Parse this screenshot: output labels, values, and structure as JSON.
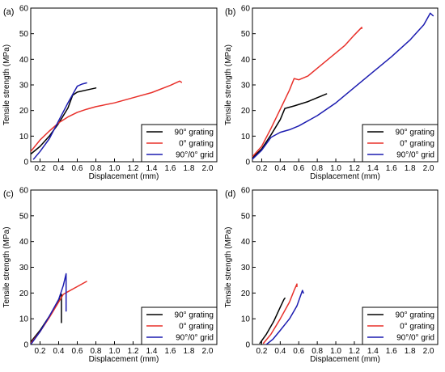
{
  "chart_data": [
    {
      "type": "line",
      "panel_label": "(a)",
      "xlabel": "Displacement (mm)",
      "ylabel": "Tensile strength (MPa)",
      "xlim": [
        0.1,
        2.1
      ],
      "ylim": [
        0,
        60
      ],
      "xticks": [
        "0.2",
        "0.4",
        "0.6",
        "0.8",
        "1.0",
        "1.2",
        "1.4",
        "1.6",
        "1.8",
        "2.0"
      ],
      "yticks": [
        "0",
        "10",
        "20",
        "30",
        "40",
        "50",
        "60"
      ],
      "legend_position": "bottom-right",
      "series": [
        {
          "name": "90° grating",
          "color": "#000000",
          "segments": [
            [
              [
                0.1,
                3
              ],
              [
                0.2,
                6
              ],
              [
                0.3,
                10
              ],
              [
                0.4,
                15
              ],
              [
                0.5,
                21
              ],
              [
                0.55,
                26
              ],
              [
                0.6,
                27.2
              ],
              [
                0.7,
                28
              ],
              [
                0.8,
                28.8
              ]
            ]
          ]
        },
        {
          "name": "0° grating",
          "color": "#e8302a",
          "segments": [
            [
              [
                0.1,
                4
              ],
              [
                0.2,
                8.5
              ],
              [
                0.3,
                12
              ],
              [
                0.4,
                15.2
              ],
              [
                0.5,
                17.5
              ],
              [
                0.6,
                19.3
              ],
              [
                0.7,
                20.5
              ],
              [
                0.8,
                21.5
              ],
              [
                1.0,
                23
              ],
              [
                1.2,
                25
              ],
              [
                1.4,
                27
              ],
              [
                1.6,
                29.8
              ],
              [
                1.7,
                31.5
              ],
              [
                1.72,
                31
              ]
            ]
          ]
        },
        {
          "name": "90°/0° grid",
          "color": "#1c1cb0",
          "segments": [
            [
              [
                0.13,
                1
              ],
              [
                0.2,
                4
              ],
              [
                0.3,
                9
              ],
              [
                0.4,
                16
              ],
              [
                0.5,
                23
              ],
              [
                0.6,
                29.5
              ],
              [
                0.65,
                30.3
              ],
              [
                0.7,
                30.8
              ]
            ]
          ]
        }
      ]
    },
    {
      "type": "line",
      "panel_label": "(b)",
      "xlabel": "Displacement (mm)",
      "ylabel": "Tensile strength (MPa)",
      "xlim": [
        0.1,
        2.1
      ],
      "ylim": [
        0,
        60
      ],
      "xticks": [
        "0.2",
        "0.4",
        "0.6",
        "0.8",
        "1.0",
        "1.2",
        "1.4",
        "1.6",
        "1.8",
        "2.0"
      ],
      "yticks": [
        "0",
        "10",
        "20",
        "30",
        "40",
        "50",
        "60"
      ],
      "legend_position": "bottom-right",
      "series": [
        {
          "name": "90° grating",
          "color": "#000000",
          "segments": [
            [
              [
                0.1,
                1.5
              ],
              [
                0.2,
                5
              ],
              [
                0.3,
                10.5
              ],
              [
                0.4,
                16.5
              ],
              [
                0.45,
                20.8
              ],
              [
                0.55,
                21.8
              ],
              [
                0.7,
                23.5
              ],
              [
                0.8,
                25
              ],
              [
                0.9,
                26.5
              ]
            ]
          ]
        },
        {
          "name": "0° grating",
          "color": "#e8302a",
          "segments": [
            [
              [
                0.1,
                2
              ],
              [
                0.2,
                6
              ],
              [
                0.3,
                13
              ],
              [
                0.4,
                20.5
              ],
              [
                0.5,
                28
              ],
              [
                0.55,
                32.5
              ],
              [
                0.6,
                32
              ],
              [
                0.7,
                33.5
              ],
              [
                0.8,
                36.5
              ],
              [
                0.9,
                39.5
              ],
              [
                1.0,
                42.5
              ],
              [
                1.1,
                45.5
              ],
              [
                1.2,
                49.5
              ],
              [
                1.28,
                52.5
              ],
              [
                1.28,
                52
              ]
            ]
          ]
        },
        {
          "name": "90°/0° grid",
          "color": "#1c1cb0",
          "segments": [
            [
              [
                0.1,
                1
              ],
              [
                0.2,
                4.5
              ],
              [
                0.3,
                9.5
              ],
              [
                0.4,
                11.5
              ],
              [
                0.5,
                12.5
              ],
              [
                0.6,
                14
              ],
              [
                0.8,
                18
              ],
              [
                1.0,
                23
              ],
              [
                1.2,
                29
              ],
              [
                1.4,
                35
              ],
              [
                1.6,
                41
              ],
              [
                1.8,
                47.5
              ],
              [
                1.95,
                53.5
              ],
              [
                2.02,
                58
              ],
              [
                2.05,
                57
              ]
            ]
          ]
        }
      ]
    },
    {
      "type": "line",
      "panel_label": "(c)",
      "xlabel": "Displacement (mm)",
      "ylabel": "Tensile strength (MPa)",
      "xlim": [
        0.1,
        2.1
      ],
      "ylim": [
        0,
        60
      ],
      "xticks": [
        "0.2",
        "0.4",
        "0.6",
        "0.8",
        "1.0",
        "1.2",
        "1.4",
        "1.6",
        "1.8",
        "2.0"
      ],
      "yticks": [
        "0",
        "10",
        "20",
        "30",
        "40",
        "50",
        "60"
      ],
      "legend_position": "bottom-right",
      "series": [
        {
          "name": "90° grating",
          "color": "#000000",
          "segments": [
            [
              [
                0.1,
                1
              ],
              [
                0.2,
                5.5
              ],
              [
                0.3,
                11
              ],
              [
                0.4,
                17
              ],
              [
                0.42,
                19.5
              ],
              [
                0.43,
                19.5
              ],
              [
                0.43,
                8.5
              ]
            ]
          ]
        },
        {
          "name": "0° grating",
          "color": "#e8302a",
          "segments": [
            [
              [
                0.1,
                0.5
              ],
              [
                0.2,
                5
              ],
              [
                0.3,
                10.5
              ],
              [
                0.4,
                16.5
              ],
              [
                0.45,
                19.5
              ],
              [
                0.5,
                20.5
              ],
              [
                0.6,
                22.5
              ],
              [
                0.7,
                24.5
              ]
            ]
          ]
        },
        {
          "name": "90°/0° grid",
          "color": "#1c1cb0",
          "segments": [
            [
              [
                0.1,
                0
              ],
              [
                0.2,
                5
              ],
              [
                0.3,
                11
              ],
              [
                0.4,
                17.5
              ],
              [
                0.45,
                23
              ],
              [
                0.48,
                27.5
              ],
              [
                0.48,
                13
              ]
            ]
          ]
        }
      ]
    },
    {
      "type": "line",
      "panel_label": "(d)",
      "xlabel": "Displacement (mm)",
      "ylabel": "Tensile strength (MPa)",
      "xlim": [
        0.1,
        2.1
      ],
      "ylim": [
        0,
        60
      ],
      "xticks": [
        "0.2",
        "0.4",
        "0.6",
        "0.8",
        "1.0",
        "1.2",
        "1.4",
        "1.6",
        "1.8",
        "2.0"
      ],
      "yticks": [
        "0",
        "10",
        "20",
        "30",
        "40",
        "50",
        "60"
      ],
      "legend_position": "bottom-right",
      "series": [
        {
          "name": "90° grating",
          "color": "#000000",
          "segments": [
            [
              [
                0.18,
                0.5
              ],
              [
                0.25,
                4
              ],
              [
                0.33,
                9
              ],
              [
                0.4,
                14.5
              ],
              [
                0.44,
                17.5
              ],
              [
                0.45,
                18
              ]
            ]
          ]
        },
        {
          "name": "0° grating",
          "color": "#e8302a",
          "segments": [
            [
              [
                0.22,
                0.5
              ],
              [
                0.3,
                4
              ],
              [
                0.4,
                10
              ],
              [
                0.5,
                16.5
              ],
              [
                0.55,
                21
              ],
              [
                0.58,
                23.5
              ],
              [
                0.58,
                22.5
              ]
            ]
          ]
        },
        {
          "name": "90°/0° grid",
          "color": "#1c1cb0",
          "segments": [
            [
              [
                0.25,
                0
              ],
              [
                0.32,
                2
              ],
              [
                0.4,
                5.5
              ],
              [
                0.5,
                10
              ],
              [
                0.58,
                15
              ],
              [
                0.63,
                20
              ],
              [
                0.64,
                21
              ],
              [
                0.65,
                20
              ]
            ]
          ]
        }
      ]
    }
  ]
}
